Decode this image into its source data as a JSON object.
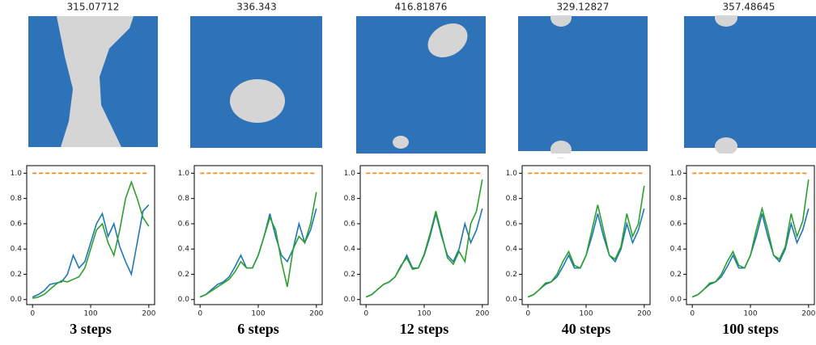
{
  "image_titles": [
    "315.07712",
    "336.343",
    "416.81876",
    "329.12827",
    "357.48645"
  ],
  "chart_data": [
    {
      "type": "line",
      "caption": "3 steps",
      "x": [
        0,
        10,
        20,
        30,
        40,
        50,
        60,
        70,
        80,
        90,
        100,
        110,
        120,
        130,
        140,
        150,
        160,
        170,
        180,
        190,
        200
      ],
      "xlim": [
        -10,
        210
      ],
      "ylim": [
        -0.04,
        1.06
      ],
      "xticks": [
        0,
        100,
        200
      ],
      "yticks": [
        {
          "value": 0,
          "label": "0.0"
        },
        0.2,
        0.4,
        0.6,
        0.8,
        {
          "value": 1,
          "label": "1.0"
        }
      ],
      "series": [
        {
          "color": "#ff7f0e",
          "dashed": true,
          "values": [
            1,
            1,
            1,
            1,
            1,
            1,
            1,
            1,
            1,
            1,
            1,
            1,
            1,
            1,
            1,
            1,
            1,
            1,
            1,
            1,
            1
          ]
        },
        {
          "color": "#1f77b4",
          "values": [
            0.02,
            0.04,
            0.07,
            0.12,
            0.13,
            0.14,
            0.2,
            0.35,
            0.25,
            0.3,
            0.45,
            0.6,
            0.68,
            0.5,
            0.6,
            0.42,
            0.3,
            0.2,
            0.45,
            0.7,
            0.75
          ]
        },
        {
          "color": "#2ca02c",
          "values": [
            0.01,
            0.02,
            0.04,
            0.08,
            0.12,
            0.15,
            0.14,
            0.16,
            0.18,
            0.25,
            0.4,
            0.55,
            0.6,
            0.45,
            0.35,
            0.55,
            0.8,
            0.93,
            0.8,
            0.65,
            0.58
          ]
        }
      ]
    },
    {
      "type": "line",
      "caption": "6 steps",
      "x": [
        0,
        10,
        20,
        30,
        40,
        50,
        60,
        70,
        80,
        90,
        100,
        110,
        120,
        130,
        140,
        150,
        160,
        170,
        180,
        190,
        200
      ],
      "xlim": [
        -10,
        210
      ],
      "ylim": [
        -0.04,
        1.06
      ],
      "xticks": [
        0,
        100,
        200
      ],
      "yticks": [
        {
          "value": 0,
          "label": "0.0"
        },
        0.2,
        0.4,
        0.6,
        0.8,
        {
          "value": 1,
          "label": "1.0"
        }
      ],
      "series": [
        {
          "color": "#ff7f0e",
          "dashed": true,
          "values": [
            1,
            1,
            1,
            1,
            1,
            1,
            1,
            1,
            1,
            1,
            1,
            1,
            1,
            1,
            1,
            1,
            1,
            1,
            1,
            1,
            1
          ]
        },
        {
          "color": "#1f77b4",
          "values": [
            0.02,
            0.04,
            0.08,
            0.12,
            0.14,
            0.18,
            0.26,
            0.35,
            0.25,
            0.25,
            0.35,
            0.5,
            0.68,
            0.5,
            0.35,
            0.3,
            0.4,
            0.6,
            0.45,
            0.55,
            0.72
          ]
        },
        {
          "color": "#2ca02c",
          "values": [
            0.02,
            0.04,
            0.07,
            0.1,
            0.13,
            0.16,
            0.22,
            0.3,
            0.25,
            0.25,
            0.35,
            0.5,
            0.65,
            0.55,
            0.3,
            0.1,
            0.4,
            0.5,
            0.45,
            0.6,
            0.85
          ]
        }
      ]
    },
    {
      "type": "line",
      "caption": "12 steps",
      "x": [
        0,
        10,
        20,
        30,
        40,
        50,
        60,
        70,
        80,
        90,
        100,
        110,
        120,
        130,
        140,
        150,
        160,
        170,
        180,
        190,
        200
      ],
      "xlim": [
        -10,
        210
      ],
      "ylim": [
        -0.04,
        1.06
      ],
      "xticks": [
        0,
        100,
        200
      ],
      "yticks": [
        {
          "value": 0,
          "label": "0.0"
        },
        0.2,
        0.4,
        0.6,
        0.8,
        {
          "value": 1,
          "label": "1.0"
        }
      ],
      "series": [
        {
          "color": "#ff7f0e",
          "dashed": true,
          "values": [
            1,
            1,
            1,
            1,
            1,
            1,
            1,
            1,
            1,
            1,
            1,
            1,
            1,
            1,
            1,
            1,
            1,
            1,
            1,
            1,
            1
          ]
        },
        {
          "color": "#1f77b4",
          "values": [
            0.02,
            0.04,
            0.08,
            0.12,
            0.14,
            0.18,
            0.26,
            0.35,
            0.25,
            0.25,
            0.35,
            0.5,
            0.68,
            0.5,
            0.35,
            0.3,
            0.4,
            0.6,
            0.45,
            0.55,
            0.72
          ]
        },
        {
          "color": "#2ca02c",
          "values": [
            0.02,
            0.04,
            0.08,
            0.12,
            0.14,
            0.18,
            0.27,
            0.33,
            0.24,
            0.25,
            0.36,
            0.52,
            0.7,
            0.52,
            0.33,
            0.28,
            0.38,
            0.3,
            0.6,
            0.7,
            0.95
          ]
        }
      ]
    },
    {
      "type": "line",
      "caption": "40 steps",
      "x": [
        0,
        10,
        20,
        30,
        40,
        50,
        60,
        70,
        80,
        90,
        100,
        110,
        120,
        130,
        140,
        150,
        160,
        170,
        180,
        190,
        200
      ],
      "xlim": [
        -10,
        210
      ],
      "ylim": [
        -0.04,
        1.06
      ],
      "xticks": [
        0,
        100,
        200
      ],
      "yticks": [
        {
          "value": 0,
          "label": "0.0"
        },
        0.2,
        0.4,
        0.6,
        0.8,
        {
          "value": 1,
          "label": "1.0"
        }
      ],
      "series": [
        {
          "color": "#ff7f0e",
          "dashed": true,
          "values": [
            1,
            1,
            1,
            1,
            1,
            1,
            1,
            1,
            1,
            1,
            1,
            1,
            1,
            1,
            1,
            1,
            1,
            1,
            1,
            1,
            1
          ]
        },
        {
          "color": "#1f77b4",
          "values": [
            0.02,
            0.04,
            0.08,
            0.12,
            0.14,
            0.18,
            0.26,
            0.35,
            0.25,
            0.25,
            0.35,
            0.5,
            0.68,
            0.5,
            0.35,
            0.3,
            0.4,
            0.6,
            0.45,
            0.55,
            0.72
          ]
        },
        {
          "color": "#2ca02c",
          "values": [
            0.02,
            0.04,
            0.08,
            0.13,
            0.14,
            0.2,
            0.3,
            0.38,
            0.27,
            0.25,
            0.35,
            0.55,
            0.75,
            0.55,
            0.35,
            0.32,
            0.42,
            0.68,
            0.5,
            0.6,
            0.9
          ]
        }
      ]
    },
    {
      "type": "line",
      "caption": "100 steps",
      "x": [
        0,
        10,
        20,
        30,
        40,
        50,
        60,
        70,
        80,
        90,
        100,
        110,
        120,
        130,
        140,
        150,
        160,
        170,
        180,
        190,
        200
      ],
      "xlim": [
        -10,
        210
      ],
      "ylim": [
        -0.04,
        1.06
      ],
      "xticks": [
        0,
        100,
        200
      ],
      "yticks": [
        {
          "value": 0,
          "label": "0.0"
        },
        0.2,
        0.4,
        0.6,
        0.8,
        {
          "value": 1,
          "label": "1.0"
        }
      ],
      "series": [
        {
          "color": "#ff7f0e",
          "dashed": true,
          "values": [
            1,
            1,
            1,
            1,
            1,
            1,
            1,
            1,
            1,
            1,
            1,
            1,
            1,
            1,
            1,
            1,
            1,
            1,
            1,
            1,
            1
          ]
        },
        {
          "color": "#1f77b4",
          "values": [
            0.02,
            0.04,
            0.08,
            0.12,
            0.14,
            0.18,
            0.26,
            0.35,
            0.25,
            0.25,
            0.35,
            0.5,
            0.68,
            0.5,
            0.35,
            0.3,
            0.4,
            0.6,
            0.45,
            0.55,
            0.72
          ]
        },
        {
          "color": "#2ca02c",
          "values": [
            0.02,
            0.04,
            0.08,
            0.13,
            0.14,
            0.2,
            0.3,
            0.38,
            0.27,
            0.25,
            0.35,
            0.55,
            0.72,
            0.55,
            0.35,
            0.32,
            0.42,
            0.68,
            0.5,
            0.62,
            0.95
          ]
        }
      ]
    }
  ]
}
